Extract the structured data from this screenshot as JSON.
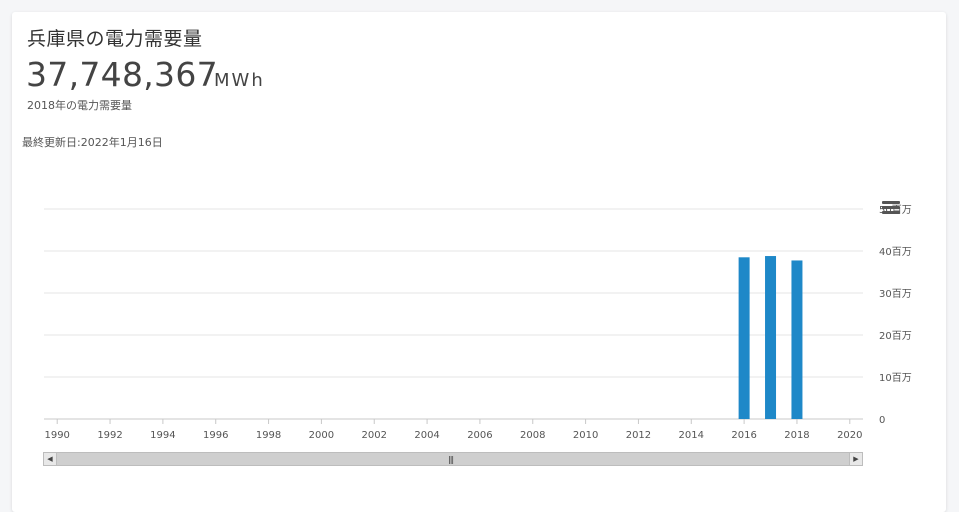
{
  "header": {
    "title": "兵庫県の電力需要量",
    "value": "37,748,367",
    "unit": "MWh",
    "sub_label": "2018年の電力需要量",
    "updated": "最終更新日:2022年1月16日"
  },
  "icons": {
    "menu": "hamburger-menu-icon",
    "scroll_left": "chevron-left-icon",
    "scroll_right": "chevron-right-icon",
    "scroll_grip": "grip-icon"
  },
  "colors": {
    "bar": "#1e88c8",
    "grid": "#e6e6e6",
    "axis": "#c8c8c8",
    "tick_text": "#555555"
  },
  "chart_data": {
    "type": "bar",
    "x": [
      2016,
      2017,
      2018
    ],
    "values": [
      38500000,
      38800000,
      37748367
    ],
    "xlim": [
      1989.5,
      2020.5
    ],
    "ylim": [
      0,
      50000000
    ],
    "x_tick_labels": [
      "1990",
      "1992",
      "1994",
      "1996",
      "1998",
      "2000",
      "2002",
      "2004",
      "2006",
      "2008",
      "2010",
      "2012",
      "2014",
      "2016",
      "2018",
      "2020"
    ],
    "y_tick_labels": [
      "0",
      "10百万",
      "20百万",
      "30百万",
      "40百万",
      "50百万"
    ],
    "y_axis_position": "right",
    "grid": true,
    "legend": false,
    "title": "",
    "xlabel": "",
    "ylabel": ""
  }
}
